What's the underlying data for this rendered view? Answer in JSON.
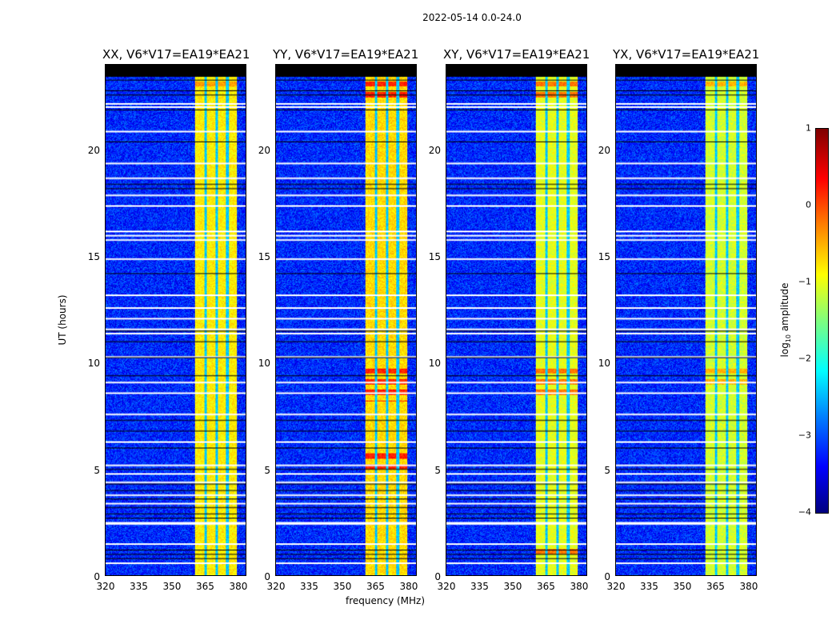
{
  "chart_data": {
    "type": "heatmap",
    "title": "2022-05-14 0.0-24.0",
    "xlabel": "frequency (MHz)",
    "ylabel": "UT (hours)",
    "xlim": [
      320,
      384
    ],
    "ylim": [
      0,
      24
    ],
    "xticks": [
      "320",
      "335",
      "350",
      "365",
      "380"
    ],
    "xtick_values": [
      320,
      335,
      350,
      365,
      380
    ],
    "yticks": [
      "0",
      "5",
      "10",
      "15",
      "20"
    ],
    "ytick_values": [
      0,
      5,
      10,
      15,
      20
    ],
    "colorbar": {
      "label": "log10 amplitude",
      "label_main": "log",
      "label_sub": "10",
      "label_rest": " amplitude",
      "range": [
        -4,
        1
      ],
      "ticks": [
        "1",
        "0",
        "−1",
        "−2",
        "−3",
        "−4"
      ],
      "tick_values": [
        1,
        0,
        -1,
        -2,
        -3,
        -4
      ],
      "colormap": "jet"
    },
    "band_mhz": [
      360.5,
      380
    ],
    "band_gaps_mhz": [
      365.5,
      370.5,
      375.5
    ],
    "background_log_amp": -3.2,
    "no_data_above_hours": 23.45,
    "flagged_white_hours": [
      22.2,
      22.05,
      20.9,
      19.4,
      18.7,
      17.9,
      17.4,
      16.2,
      16.0,
      15.8,
      14.9,
      13.2,
      12.6,
      12.1,
      11.6,
      11.4,
      10.3,
      9.1,
      8.6,
      7.6,
      6.3,
      5.2,
      4.8,
      4.4,
      3.8,
      3.4,
      2.5,
      2.45,
      1.5,
      0.6
    ],
    "flagged_black_hours": [
      23.3,
      22.8,
      22.6,
      21.9,
      20.4,
      18.4,
      18.2,
      14.2,
      11.5,
      11.0,
      10.25,
      9.4,
      7.3,
      6.8,
      6.0,
      5.0,
      4.3,
      4.0,
      3.6,
      3.2,
      2.9,
      2.7,
      1.2,
      1.0,
      0.8
    ],
    "panels": [
      {
        "title": "XX, V6*V17=EA19*EA21",
        "band_log_amp": -0.8,
        "peak_hours": [
          [
            23,
            23.4
          ]
        ],
        "peak_log_amp": -0.4
      },
      {
        "title": "YY, V6*V17=EA19*EA21",
        "band_log_amp": -0.7,
        "peak_hours": [
          [
            8.2,
            9.8
          ],
          [
            22.5,
            23.4
          ],
          [
            5,
            5.8
          ]
        ],
        "peak_log_amp": 0.2
      },
      {
        "title": "XY, V6*V17=EA19*EA21",
        "band_log_amp": -1.0,
        "peak_hours": [
          [
            8.5,
            9.8
          ],
          [
            22.5,
            23.4
          ],
          [
            1,
            1.5
          ]
        ],
        "peak_log_amp": -0.2
      },
      {
        "title": "YX, V6*V17=EA19*EA21",
        "band_log_amp": -1.1,
        "peak_hours": [
          [
            9,
            9.8
          ],
          [
            23,
            23.4
          ]
        ],
        "peak_log_amp": -0.5
      }
    ]
  }
}
